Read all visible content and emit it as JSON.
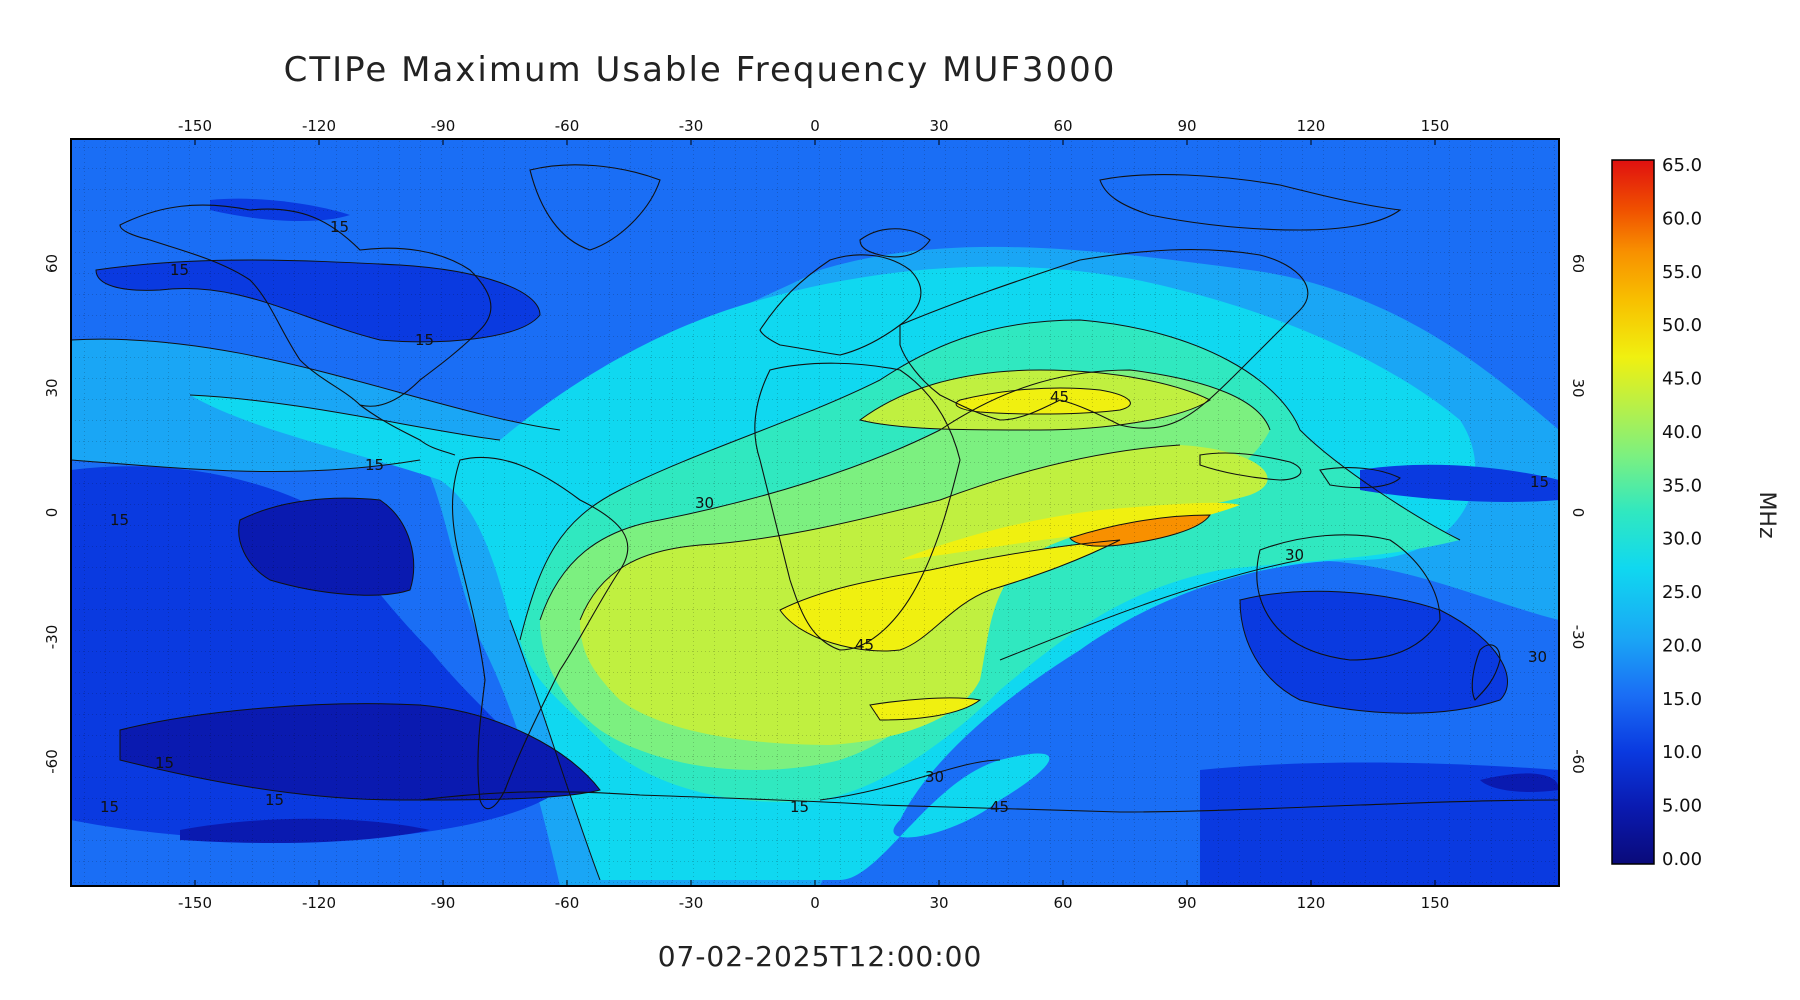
{
  "title": "CTIPe Maximum Usable Frequency MUF3000",
  "timestamp": "07-02-2025T12:00:00",
  "colorbar": {
    "unit": "MHz",
    "ticks": [
      "65.0",
      "60.0",
      "55.0",
      "50.0",
      "45.0",
      "40.0",
      "35.0",
      "30.0",
      "25.0",
      "20.0",
      "15.0",
      "10.0",
      "5.00",
      "0.00"
    ],
    "colors": [
      "#0a0a7a",
      "#0a1ab0",
      "#0a3ae0",
      "#1a6ef5",
      "#1aa6f5",
      "#10d8f0",
      "#30e8c0",
      "#7cf080",
      "#c0f040",
      "#f0f010",
      "#f8c000",
      "#f89000",
      "#f05000",
      "#e01010"
    ]
  },
  "axes": {
    "lon_ticks": [
      "-150",
      "-120",
      "-90",
      "-60",
      "-30",
      "0",
      "30",
      "60",
      "90",
      "120",
      "150"
    ],
    "lat_ticks": [
      "60",
      "30",
      "0",
      "-30",
      "-60"
    ]
  },
  "contour_labels": [
    {
      "text": "15"
    },
    {
      "text": "15"
    },
    {
      "text": "15"
    },
    {
      "text": "15"
    },
    {
      "text": "15"
    },
    {
      "text": "15"
    },
    {
      "text": "15"
    },
    {
      "text": "15"
    },
    {
      "text": "15"
    },
    {
      "text": "15"
    },
    {
      "text": "30"
    },
    {
      "text": "30"
    },
    {
      "text": "30"
    },
    {
      "text": "30"
    },
    {
      "text": "45"
    },
    {
      "text": "45"
    },
    {
      "text": "45"
    }
  ]
}
